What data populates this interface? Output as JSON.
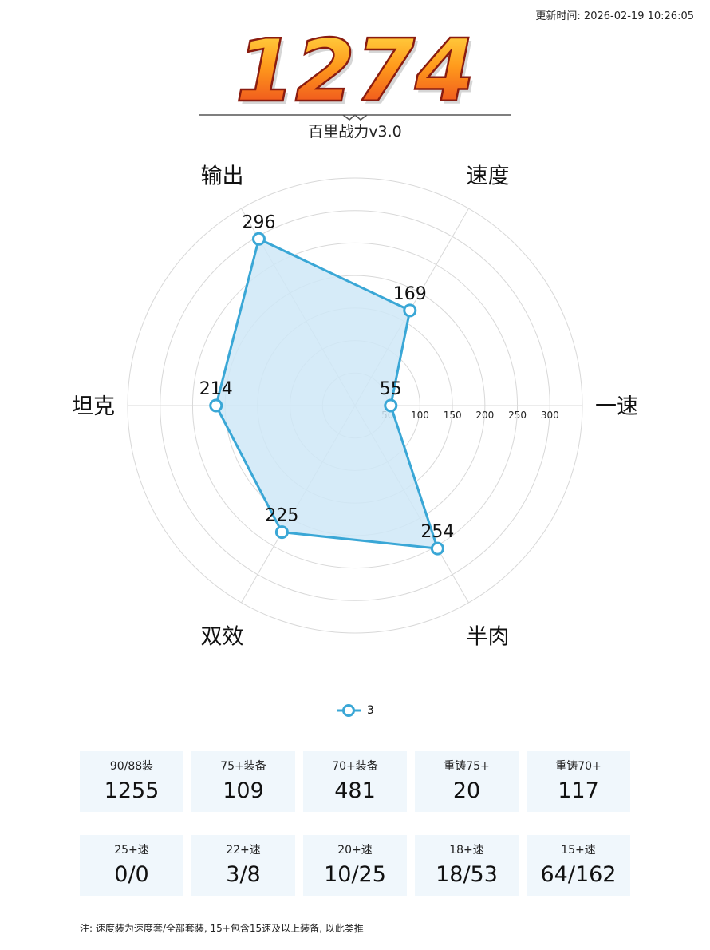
{
  "header": {
    "update_time": "更新时间: 2026-02-19 10:26:05",
    "score": "1274",
    "subtitle": "百里战力v3.0"
  },
  "chart_data": {
    "type": "radar",
    "axes": [
      "一速",
      "速度",
      "输出",
      "坦克",
      "双效",
      "半肉"
    ],
    "series": [
      {
        "name": "3",
        "values": [
          55,
          169,
          296,
          214,
          225,
          254
        ]
      }
    ],
    "r_ticks": [
      50,
      100,
      150,
      200,
      250,
      300
    ],
    "r_range": [
      0,
      350
    ],
    "grid": true,
    "legend_position": "bottom",
    "colors": {
      "line": "#3aa7d6",
      "fill": "#cfe8f7"
    }
  },
  "stats": {
    "row1": [
      {
        "label": "90/88装",
        "value": "1255"
      },
      {
        "label": "75+装备",
        "value": "109"
      },
      {
        "label": "70+装备",
        "value": "481"
      },
      {
        "label": "重铸75+",
        "value": "20"
      },
      {
        "label": "重铸70+",
        "value": "117"
      }
    ],
    "row2": [
      {
        "label": "25+速",
        "value": "0/0"
      },
      {
        "label": "22+速",
        "value": "3/8"
      },
      {
        "label": "20+速",
        "value": "10/25"
      },
      {
        "label": "18+速",
        "value": "18/53"
      },
      {
        "label": "15+速",
        "value": "64/162"
      }
    ]
  },
  "note": "注: 速度装为速度套/全部套装, 15+包含15速及以上装备, 以此类推"
}
